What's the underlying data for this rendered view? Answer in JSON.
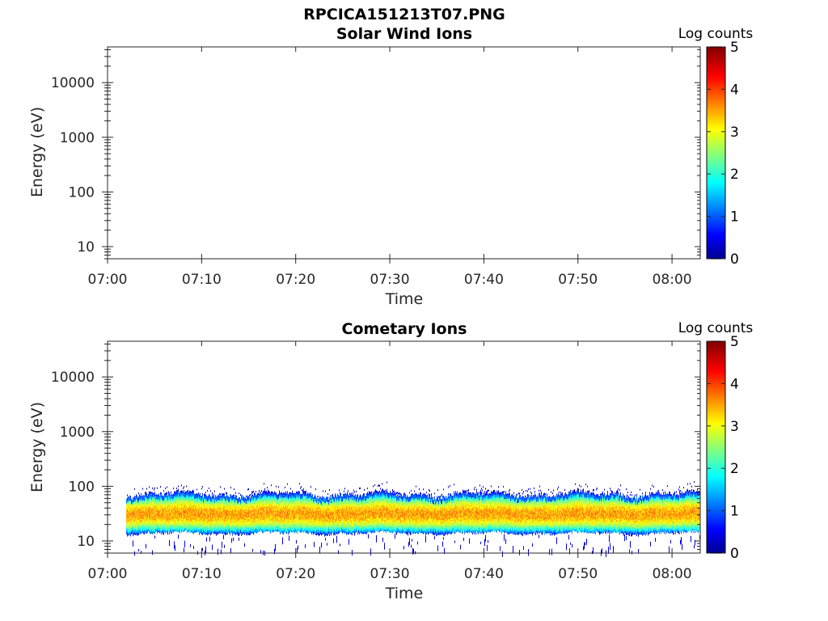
{
  "figure_title": "RPCICA151213T07.PNG",
  "colormap": "jet",
  "chart_data": [
    {
      "type": "heatmap",
      "title": "Solar Wind Ions",
      "xlabel": "Time",
      "ylabel": "Energy (eV)",
      "x_ticks": [
        "07:00",
        "07:10",
        "07:20",
        "07:30",
        "07:40",
        "07:50",
        "08:00"
      ],
      "xlim": [
        "07:00",
        "08:03"
      ],
      "y_ticks": [
        "10",
        "100",
        "1000",
        "10000"
      ],
      "y_scale": "log",
      "ylim": [
        6,
        45000
      ],
      "colorbar_label": "Log counts",
      "colorbar_ticks": [
        "0",
        "1",
        "2",
        "3",
        "4",
        "5"
      ],
      "clim": [
        0,
        5
      ],
      "data": "empty"
    },
    {
      "type": "heatmap",
      "title": "Cometary Ions",
      "xlabel": "Time",
      "ylabel": "Energy (eV)",
      "x_ticks": [
        "07:00",
        "07:10",
        "07:20",
        "07:30",
        "07:40",
        "07:50",
        "08:00"
      ],
      "xlim": [
        "07:00",
        "08:03"
      ],
      "y_ticks": [
        "10",
        "100",
        "1000",
        "10000"
      ],
      "y_scale": "log",
      "ylim": [
        6,
        45000
      ],
      "colorbar_label": "Log counts",
      "colorbar_ticks": [
        "0",
        "1",
        "2",
        "3",
        "4",
        "5"
      ],
      "clim": [
        0,
        5
      ],
      "data_start": "07:02",
      "data_end": "08:03",
      "band_upper_eV": 80,
      "band_lower_eV": 15,
      "band_peak_eV": 32,
      "peak_log_counts": 3.6
    }
  ]
}
